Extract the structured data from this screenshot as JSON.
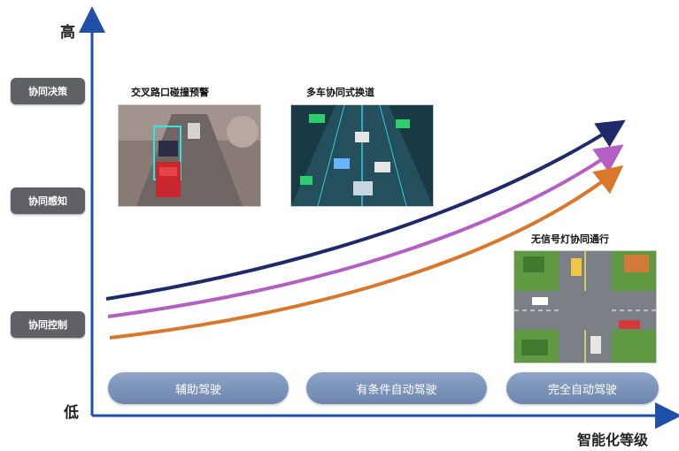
{
  "axis": {
    "y_high": "高",
    "y_low": "低",
    "x_title": "智能化等级"
  },
  "y_levels": [
    {
      "label": "协同决策"
    },
    {
      "label": "协同感知"
    },
    {
      "label": "协同控制"
    }
  ],
  "stages": [
    {
      "label": "辅助驾驶"
    },
    {
      "label": "有条件自动驾驶"
    },
    {
      "label": "完全自动驾驶"
    }
  ],
  "scenes": [
    {
      "caption": "交叉路口碰撞预警",
      "image": "intersection-collision-warning-photo"
    },
    {
      "caption": "多车协同式换道",
      "image": "multi-vehicle-lane-change-photo"
    },
    {
      "caption": "无信号灯协同通行",
      "image": "unsignalized-intersection-photo"
    }
  ],
  "curves": [
    {
      "color": "#1f2a6b"
    },
    {
      "color": "#b35fc4"
    },
    {
      "color": "#d9772a"
    }
  ],
  "colors": {
    "axis": "#1f4fa8",
    "box": "#5f6166",
    "pill": "#7d93b8"
  }
}
